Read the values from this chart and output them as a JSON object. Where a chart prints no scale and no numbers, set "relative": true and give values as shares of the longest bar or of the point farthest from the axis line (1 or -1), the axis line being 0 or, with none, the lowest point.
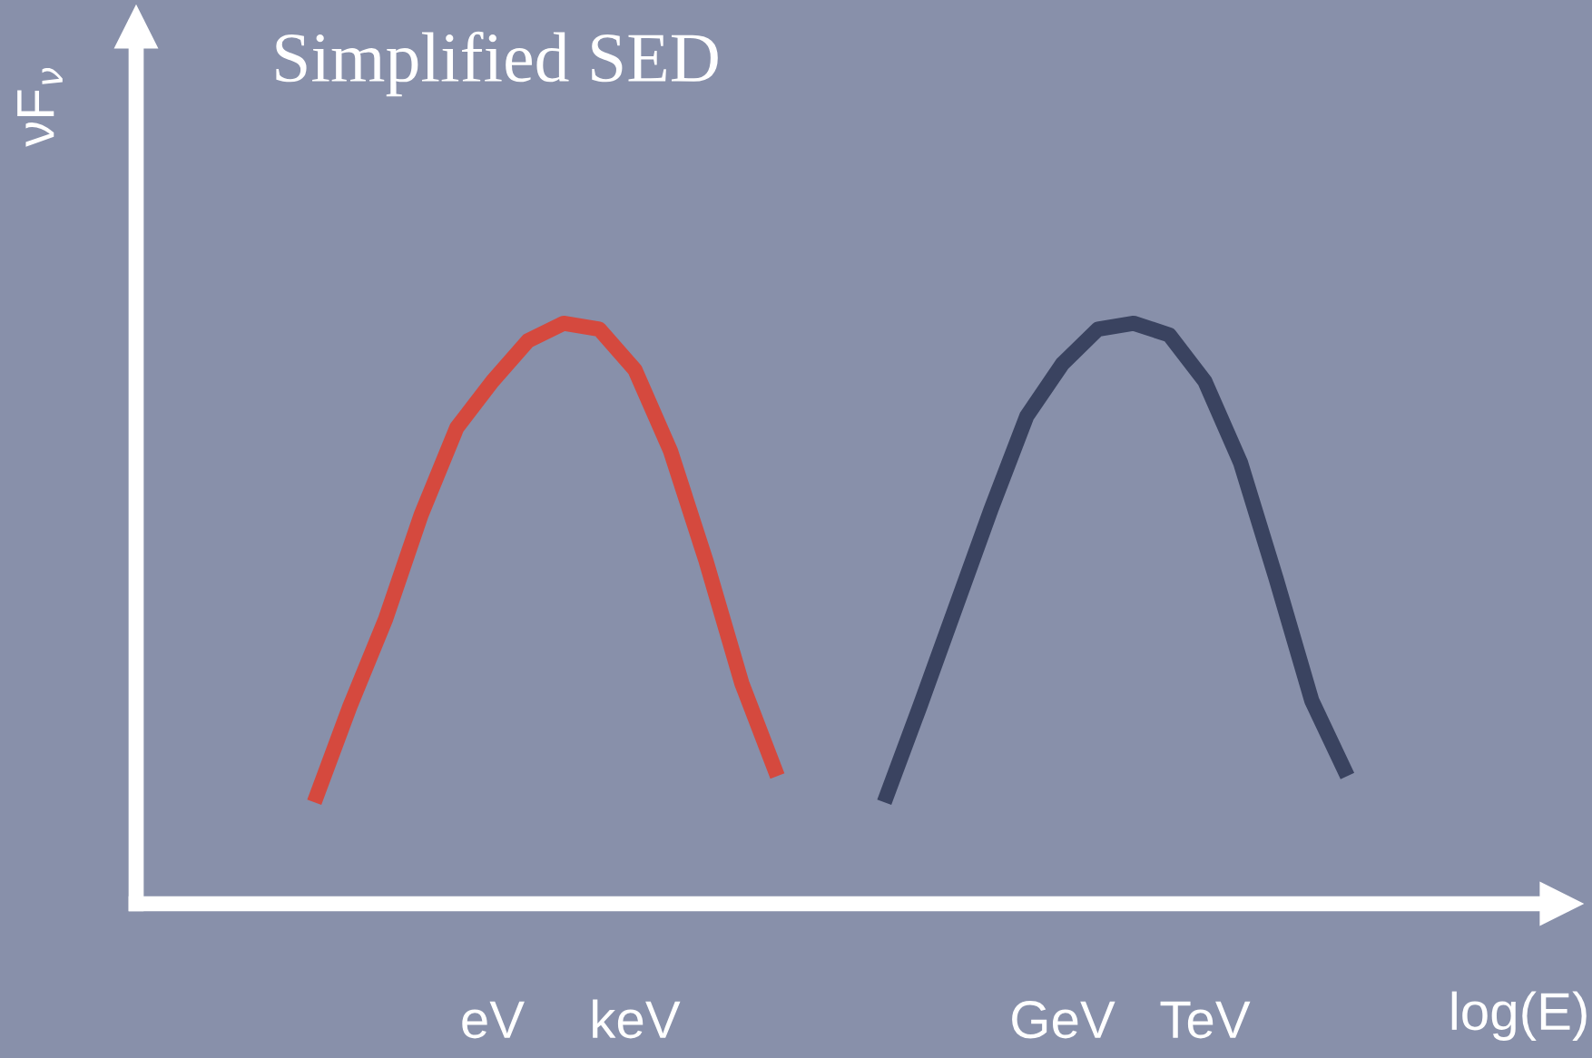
{
  "chart_data": {
    "type": "line",
    "title": "Simplified SED",
    "ylabel": "νF$_{ν}$",
    "xlabel": "log(E)",
    "relative": true,
    "categories": [
      null,
      null,
      null,
      null,
      null,
      null,
      null,
      null,
      null,
      null,
      "eV",
      null,
      null,
      null,
      "keV",
      null,
      null,
      null,
      null,
      null,
      null,
      null,
      null,
      null,
      null,
      null,
      "GeV",
      null,
      null,
      null,
      "TeV",
      null,
      null,
      null,
      null,
      null,
      null,
      null,
      null,
      null
    ],
    "series": [
      {
        "color": "#d5493e",
        "values": [
          null,
          null,
          null,
          null,
          null,
          0.175,
          0.34,
          0.49,
          0.67,
          0.82,
          0.9,
          0.97,
          1,
          0.99,
          0.92,
          0.78,
          0.59,
          0.38,
          0.22,
          null,
          null,
          null,
          null,
          null,
          null,
          null,
          null,
          null,
          null,
          null,
          null,
          null,
          null,
          null,
          null,
          null,
          null,
          null,
          null,
          null
        ]
      },
      {
        "color": "#3a4360",
        "values": [
          null,
          null,
          null,
          null,
          null,
          null,
          null,
          null,
          null,
          null,
          null,
          null,
          null,
          null,
          null,
          null,
          null,
          null,
          null,
          null,
          null,
          0.175,
          0.34,
          0.51,
          0.68,
          0.84,
          0.93,
          0.99,
          1,
          0.98,
          0.9,
          0.76,
          0.56,
          0.35,
          0.22,
          null,
          null,
          null,
          null,
          null
        ]
      }
    ],
    "grid": false,
    "marker": "none",
    "line_style": "solid"
  }
}
